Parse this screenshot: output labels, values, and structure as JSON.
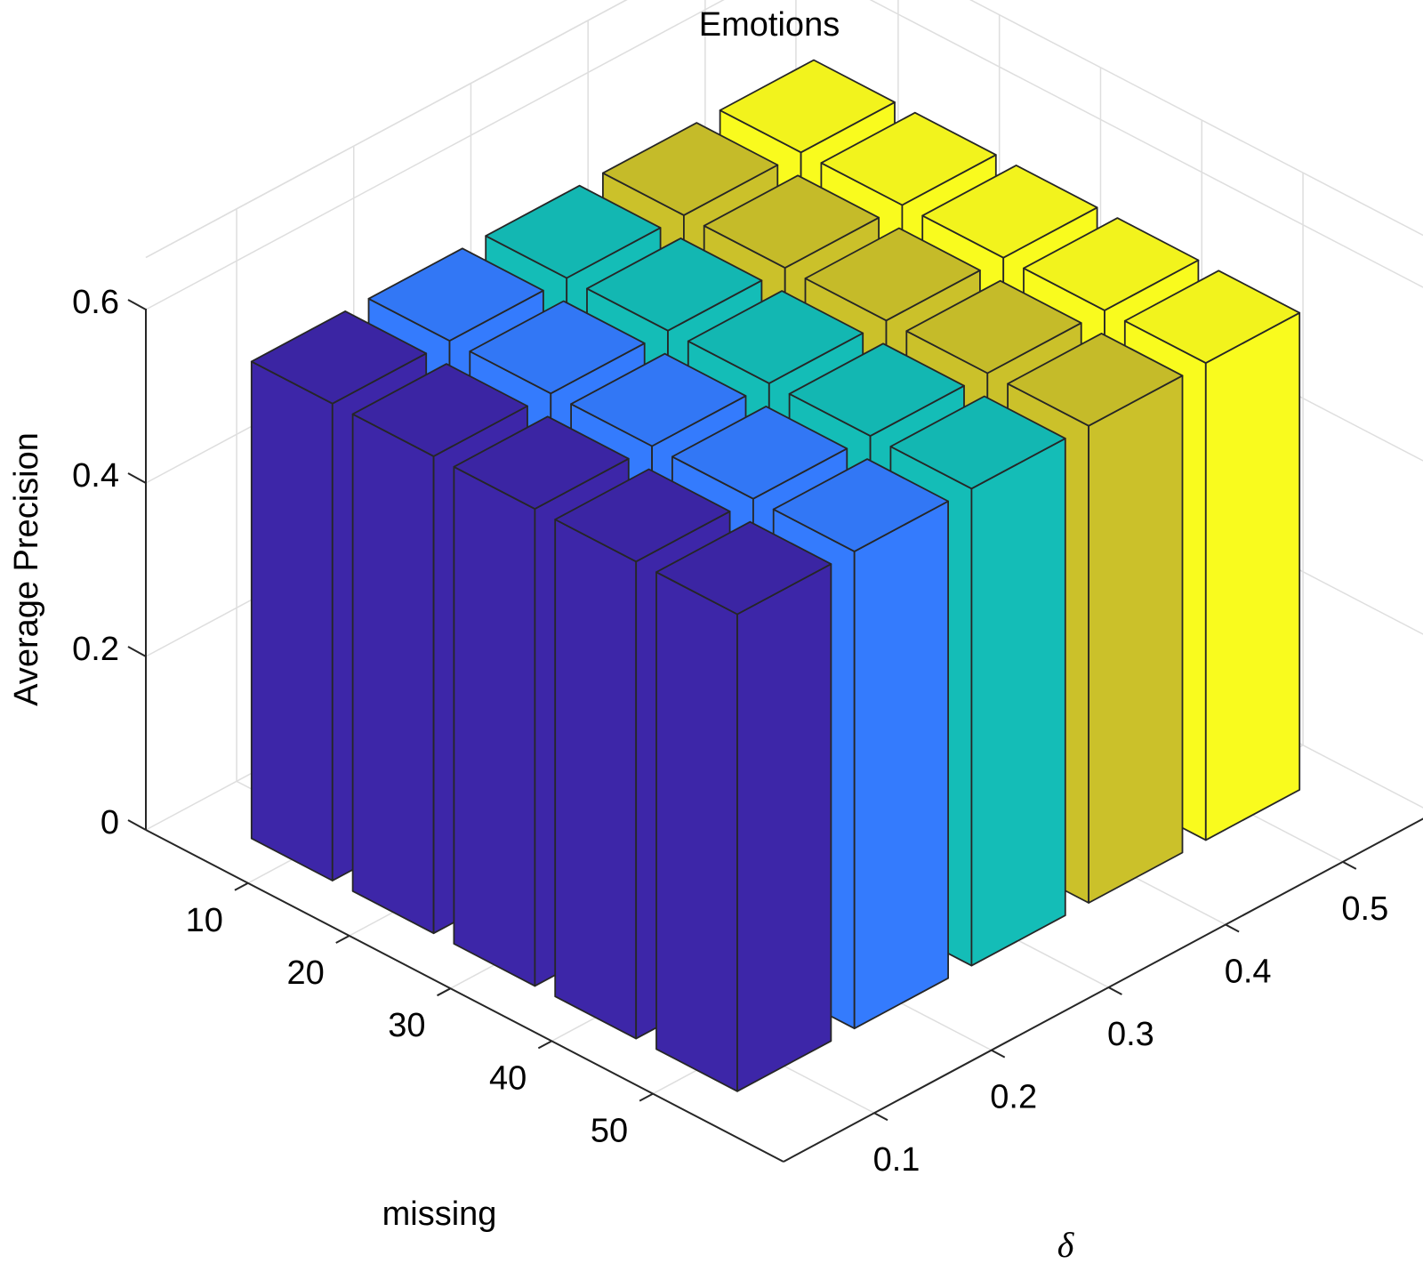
{
  "chart_data": {
    "type": "bar3d",
    "title": "Emotions",
    "xlabel": "missing",
    "ylabel": "δ",
    "zlabel": "Average Precision",
    "x_categories": [
      "10",
      "20",
      "30",
      "40",
      "50"
    ],
    "y_categories": [
      "0.1",
      "0.2",
      "0.3",
      "0.4",
      "0.5"
    ],
    "z_ticks": [
      "0",
      "0.2",
      "0.4",
      "0.6"
    ],
    "zlim": [
      0,
      0.6
    ],
    "grid": true,
    "series": [
      {
        "delta": "0.1",
        "color": "#3d26a8",
        "values": [
          0.55,
          0.55,
          0.55,
          0.55,
          0.55
        ]
      },
      {
        "delta": "0.2",
        "color": "#347bfd",
        "values": [
          0.55,
          0.55,
          0.55,
          0.55,
          0.55
        ]
      },
      {
        "delta": "0.3",
        "color": "#14bdb7",
        "values": [
          0.55,
          0.55,
          0.55,
          0.55,
          0.55
        ]
      },
      {
        "delta": "0.4",
        "color": "#cbc12a",
        "values": [
          0.55,
          0.55,
          0.55,
          0.55,
          0.55
        ]
      },
      {
        "delta": "0.5",
        "color": "#f9fb1e",
        "values": [
          0.55,
          0.55,
          0.55,
          0.55,
          0.55
        ]
      }
    ]
  }
}
